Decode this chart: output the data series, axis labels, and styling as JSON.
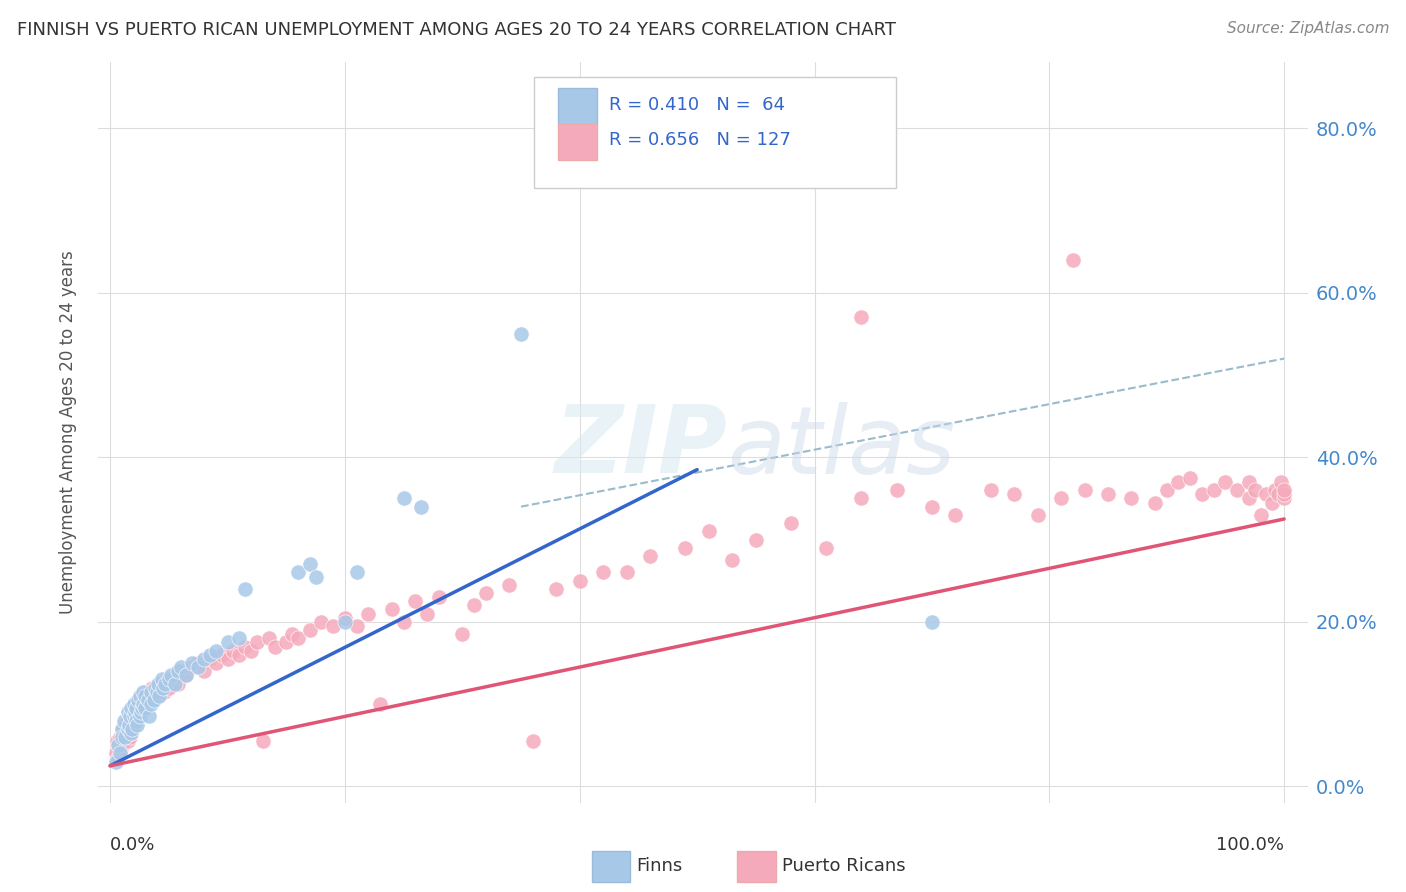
{
  "title": "FINNISH VS PUERTO RICAN UNEMPLOYMENT AMONG AGES 20 TO 24 YEARS CORRELATION CHART",
  "source": "Source: ZipAtlas.com",
  "ylabel": "Unemployment Among Ages 20 to 24 years",
  "finn_R": 0.41,
  "finn_N": 64,
  "pr_R": 0.656,
  "pr_N": 127,
  "finn_color": "#a8c8e8",
  "pr_color": "#f5aabb",
  "finn_line_color": "#3366cc",
  "pr_line_color": "#e05575",
  "dashed_line_color": "#99bbcc",
  "background_color": "#ffffff",
  "grid_color": "#dddddd",
  "ytick_color": "#4488cc",
  "title_color": "#333333",
  "source_color": "#888888",
  "ylabel_color": "#555555",
  "watermark_color": "#dce8f0",
  "legend_border_color": "#cccccc",
  "xlim": [
    0.0,
    1.0
  ],
  "ylim": [
    0.0,
    0.8
  ],
  "yticks": [
    0.0,
    0.2,
    0.4,
    0.6,
    0.8
  ],
  "ytick_labels": [
    "0.0%",
    "20.0%",
    "40.0%",
    "60.0%",
    "80.0%"
  ],
  "finn_line": {
    "x0": 0.0,
    "x1": 0.5,
    "y0": 0.025,
    "y1": 0.385
  },
  "pr_line": {
    "x0": 0.0,
    "x1": 1.0,
    "y0": 0.025,
    "y1": 0.325
  },
  "dash_line": {
    "x0": 0.35,
    "x1": 1.0,
    "y0": 0.34,
    "y1": 0.52
  }
}
